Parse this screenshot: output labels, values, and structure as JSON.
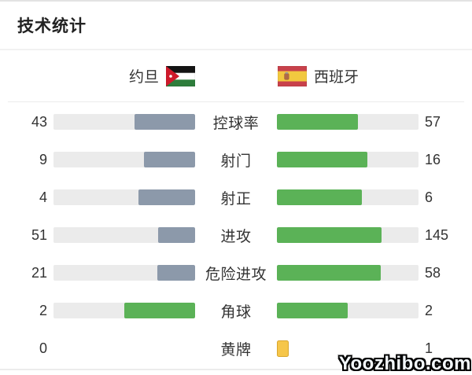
{
  "page": {
    "title": "技术统计",
    "watermark": "Yoozhibo.com"
  },
  "teams": {
    "home": {
      "name": "约旦",
      "flag": "jordan-flag"
    },
    "away": {
      "name": "西班牙",
      "flag": "spain-flag"
    }
  },
  "stats": {
    "rows": [
      {
        "label": "控球率",
        "home": 43,
        "away": 57,
        "type": "bar"
      },
      {
        "label": "射门",
        "home": 9,
        "away": 16,
        "type": "bar"
      },
      {
        "label": "射正",
        "home": 4,
        "away": 6,
        "type": "bar"
      },
      {
        "label": "进攻",
        "home": 51,
        "away": 145,
        "type": "bar"
      },
      {
        "label": "危险进攻",
        "home": 21,
        "away": 58,
        "type": "bar"
      },
      {
        "label": "角球",
        "home": 2,
        "away": 2,
        "type": "bar"
      },
      {
        "label": "黄牌",
        "home": 0,
        "away": 1,
        "type": "cards"
      }
    ]
  },
  "colors": {
    "home_bar": "#8c99aa",
    "home_bar_leading": "#5bb257",
    "away_bar": "#5bb257",
    "track": "#ebebeb",
    "yellow_card": "#f6c64a",
    "yellow_card_border": "#d9a62e"
  },
  "chart_data": {
    "type": "bar",
    "title": "技术统计",
    "categories": [
      "控球率",
      "射门",
      "射正",
      "进攻",
      "危险进攻",
      "角球",
      "黄牌"
    ],
    "series": [
      {
        "name": "约旦",
        "values": [
          43,
          9,
          4,
          51,
          21,
          2,
          0
        ]
      },
      {
        "name": "西班牙",
        "values": [
          57,
          16,
          6,
          145,
          58,
          2,
          1
        ]
      }
    ],
    "layout": "paired horizontal bars; each side's fill length is proportional to value/(home+away); home bar grows right-to-left, away bar left-to-right; yellow cards shown as card icons instead of bars",
    "legend_position": "top (team names with flags)"
  }
}
